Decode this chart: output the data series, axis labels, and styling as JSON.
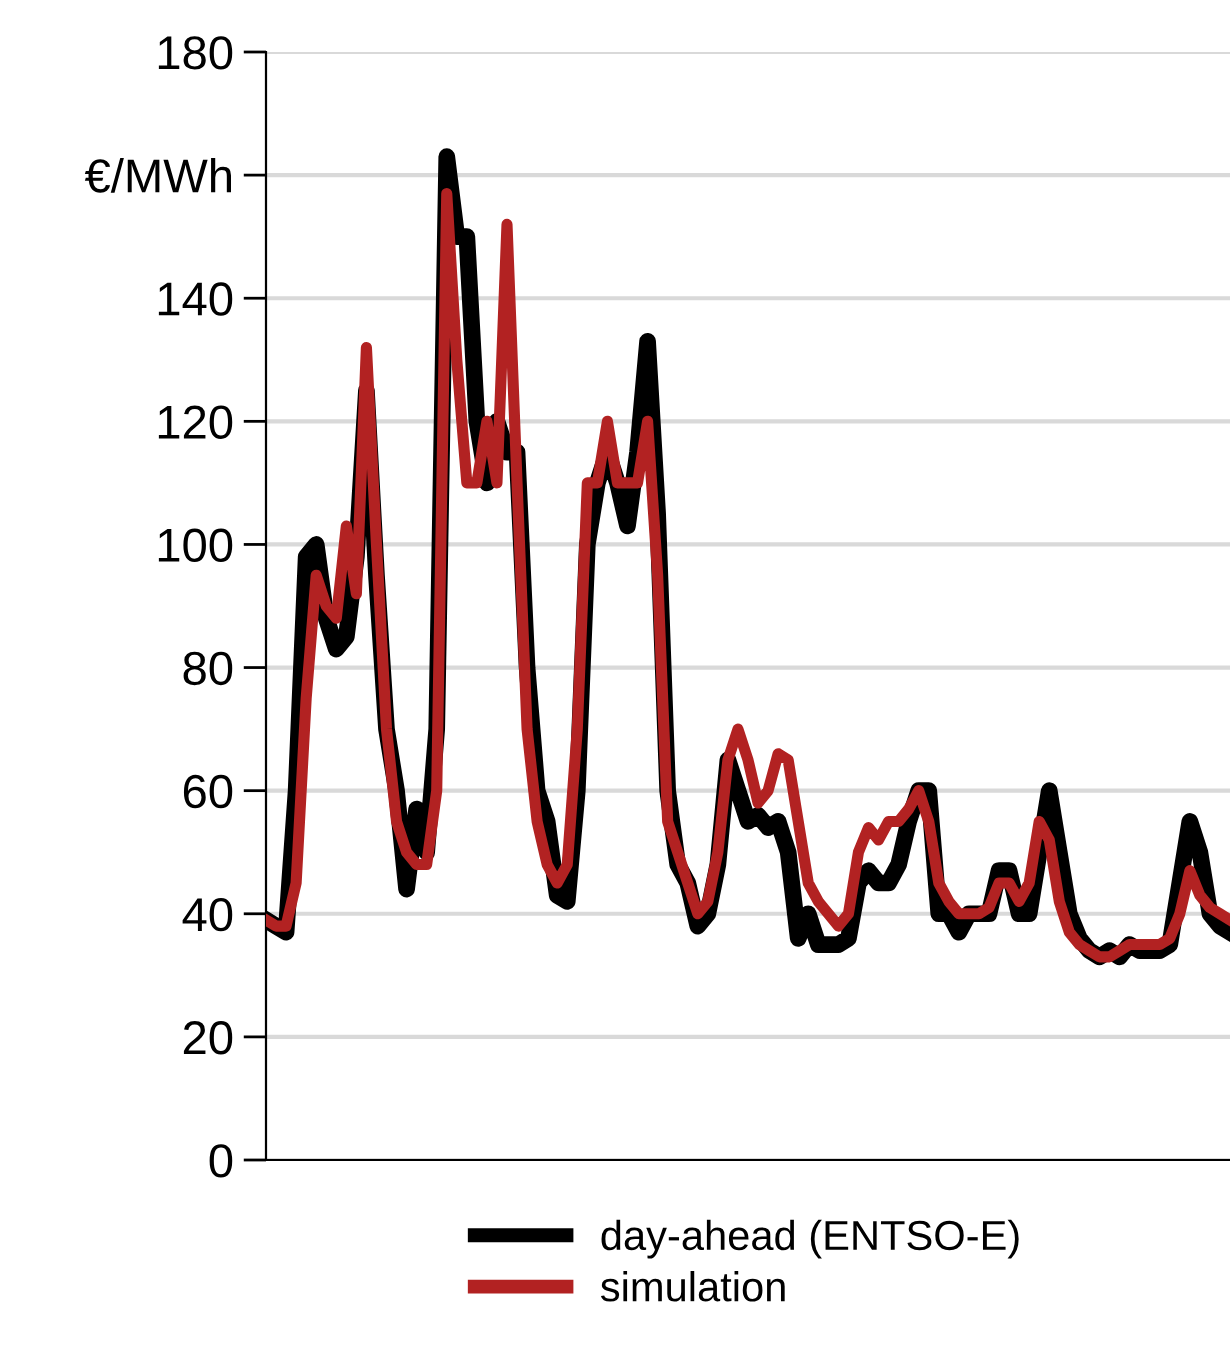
{
  "chart_data": {
    "type": "line",
    "categories": [
      null,
      null,
      null,
      null,
      null,
      null,
      null,
      null,
      null,
      null,
      null,
      null,
      null,
      null,
      null,
      null,
      null,
      null,
      null,
      null,
      null,
      null,
      null,
      null,
      null,
      null,
      null,
      null,
      null,
      null,
      null,
      null,
      null,
      null,
      null,
      null,
      null,
      null,
      null,
      null,
      null,
      null,
      null,
      null,
      null,
      null,
      null,
      null,
      null,
      null,
      null,
      null,
      null,
      null,
      null,
      null,
      null,
      null,
      null,
      null,
      null,
      null,
      null,
      null,
      null,
      null,
      null,
      null,
      null,
      null,
      null,
      null,
      null,
      null,
      null,
      null,
      null,
      null,
      null,
      null,
      null,
      null,
      null,
      null,
      null,
      null,
      null,
      null,
      null,
      null,
      null,
      null,
      null,
      null,
      null,
      null,
      null
    ],
    "ylim": [
      0,
      180
    ],
    "yticks": [
      0,
      20,
      40,
      60,
      80,
      100,
      120,
      140,
      {
        "value": 160,
        "label": "€/MWh"
      },
      180
    ],
    "grid": "y",
    "legend": "bottom",
    "marker": "none",
    "line_style": "solid",
    "series": [
      {
        "name": "day-ahead (ENTSO-E)",
        "color": "#000000",
        "values": [
          39,
          38,
          37,
          60,
          98,
          100,
          88,
          83,
          85,
          98,
          125,
          95,
          70,
          60,
          44,
          57,
          50,
          70,
          163,
          150,
          150,
          120,
          110,
          120,
          115,
          115,
          80,
          60,
          55,
          43,
          42,
          60,
          100,
          110,
          115,
          110,
          103,
          115,
          133,
          105,
          60,
          48,
          45,
          38,
          40,
          48,
          65,
          60,
          55,
          56,
          54,
          55,
          50,
          36,
          40,
          35,
          35,
          35,
          36,
          45,
          47,
          45,
          45,
          48,
          55,
          60,
          60,
          40,
          40,
          37,
          40,
          40,
          40,
          47,
          47,
          40,
          40,
          50,
          60,
          50,
          40,
          36,
          34,
          33,
          34,
          33,
          35,
          34,
          34,
          34,
          35,
          45,
          55,
          50,
          40,
          38,
          37
        ]
      },
      {
        "name": "simulation",
        "color": "#b22222",
        "values": [
          39,
          38,
          38,
          45,
          75,
          95,
          90,
          88,
          103,
          92,
          132,
          100,
          70,
          55,
          50,
          48,
          48,
          60,
          157,
          130,
          110,
          110,
          120,
          110,
          152,
          110,
          70,
          55,
          48,
          45,
          48,
          70,
          110,
          110,
          120,
          110,
          110,
          110,
          120,
          95,
          55,
          50,
          45,
          40,
          42,
          50,
          65,
          70,
          65,
          58,
          60,
          66,
          65,
          55,
          45,
          42,
          40,
          38,
          40,
          50,
          54,
          52,
          55,
          55,
          57,
          60,
          55,
          45,
          42,
          40,
          40,
          40,
          41,
          45,
          45,
          42,
          45,
          55,
          52,
          42,
          37,
          35,
          34,
          33,
          33,
          34,
          35,
          35,
          35,
          35,
          36,
          40,
          47,
          43,
          41,
          40,
          39
        ]
      }
    ]
  }
}
